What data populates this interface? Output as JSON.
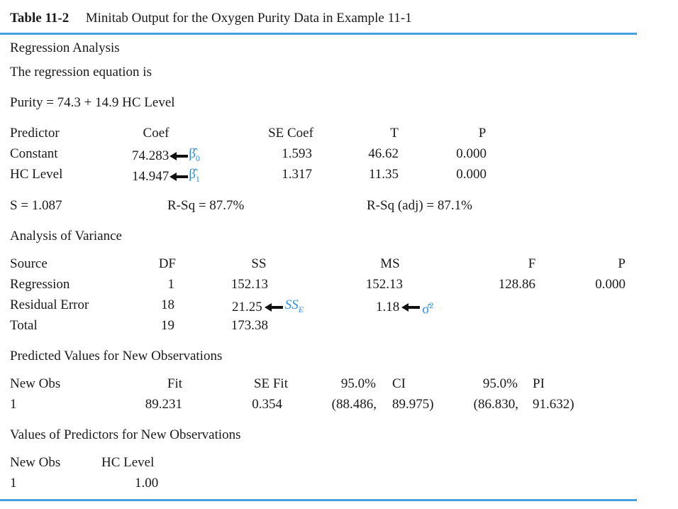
{
  "title": {
    "number": "Table 11-2",
    "caption": "Minitab Output for the Oxygen Purity Data in Example 11-1"
  },
  "heading": "Regression Analysis",
  "eq_intro": "The regression equation is",
  "equation": "Purity = 74.3 + 14.9 HC Level",
  "coef_table": {
    "headers": [
      "Predictor",
      "Coef",
      "SE Coef",
      "T",
      "P"
    ],
    "rows": [
      {
        "predictor": "Constant",
        "coef": "74.283",
        "se": "1.593",
        "t": "46.62",
        "p": "0.000",
        "annotation": "β̂",
        "annotation_sub": "0"
      },
      {
        "predictor": "HC Level",
        "coef": "14.947",
        "se": "1.317",
        "t": "11.35",
        "p": "0.000",
        "annotation": "β̂",
        "annotation_sub": "1"
      }
    ]
  },
  "fit_stats": {
    "s": "S = 1.087",
    "rsq": "R-Sq = 87.7%",
    "rsq_adj": "R-Sq (adj) = 87.1%"
  },
  "anova": {
    "heading": "Analysis of Variance",
    "headers": [
      "Source",
      "DF",
      "SS",
      "MS",
      "F",
      "P"
    ],
    "rows": [
      {
        "source": "Regression",
        "df": "1",
        "ss": "152.13",
        "ms": "152.13",
        "f": "128.86",
        "p": "0.000"
      },
      {
        "source": "Residual Error",
        "df": "18",
        "ss": "21.25",
        "ms": "1.18",
        "f": "",
        "p": ""
      },
      {
        "source": "Total",
        "df": "19",
        "ss": "173.38",
        "ms": "",
        "f": "",
        "p": ""
      }
    ],
    "ss_annotation": "SS",
    "ss_annotation_sub": "E",
    "ms_annotation": "σ̂",
    "ms_annotation_sup": "2"
  },
  "predicted": {
    "heading": "Predicted Values for New Observations",
    "headers": [
      "New Obs",
      "Fit",
      "SE Fit",
      "95.0%",
      "CI",
      "95.0%",
      "PI"
    ],
    "row": {
      "obs": "1",
      "fit": "89.231",
      "se_fit": "0.354",
      "ci_low": "(88.486,",
      "ci_high": "89.975)",
      "pi_low": "(86.830,",
      "pi_high": "91.632)"
    }
  },
  "predictors": {
    "heading": "Values of Predictors for New Observations",
    "headers": [
      "New Obs",
      "HC Level"
    ],
    "row": {
      "obs": "1",
      "hc": "1.00"
    }
  },
  "colors": {
    "rule": "#4a9fe0",
    "annotation": "#2f8fdc"
  }
}
